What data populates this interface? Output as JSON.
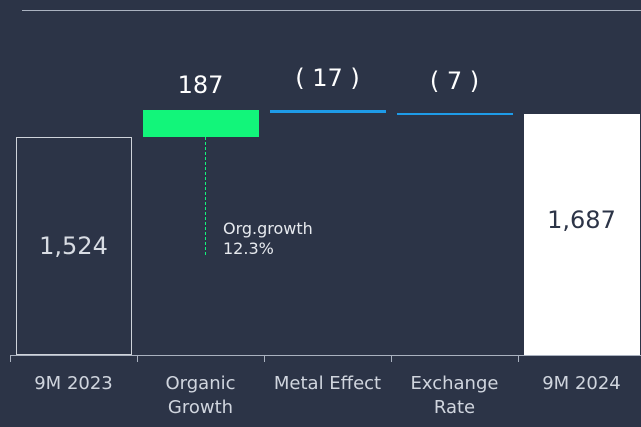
{
  "chart_data": {
    "type": "waterfall",
    "categories": [
      "9M 2023",
      "Organic Growth",
      "Metal Effect",
      "Exchange Rate",
      "9M 2024"
    ],
    "values": [
      1524,
      187,
      -17,
      -7,
      1687
    ],
    "value_labels": [
      "1,524",
      "187",
      "( 17 )",
      "( 7 )",
      "1,687"
    ],
    "annotations": [
      "Org.growth",
      "12.3%"
    ],
    "start_color": "#cfd3da",
    "increase_color": "#12f57a",
    "decrease_color": "#1e9be8",
    "total_color": "#ffffff"
  }
}
